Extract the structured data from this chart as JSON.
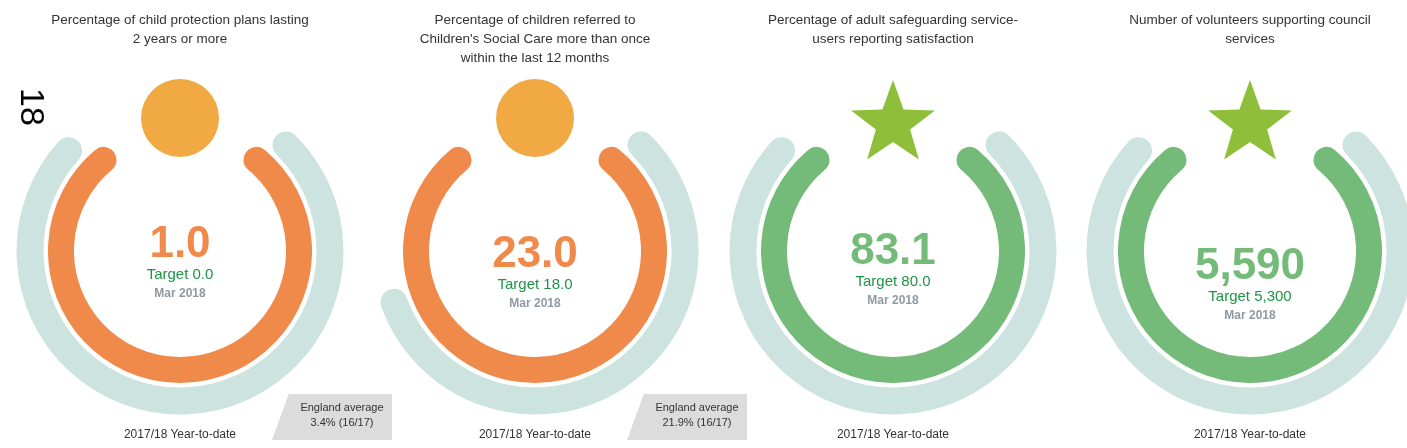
{
  "chart_data": [
    {
      "type": "other",
      "title": "Percentage of child protection plans lasting 2 years or more",
      "categories": [
        null
      ],
      "values": [
        1.0
      ],
      "value_labels": [
        "1.0"
      ],
      "annotations": [
        "Target  0.0",
        "Mar 2018",
        "2017/18 Year-to-date",
        "England average 3.4% (16/17)",
        "18"
      ]
    },
    {
      "type": "other",
      "title": "Percentage of children referred to Children's Social Care more than once within the last 12 months",
      "categories": [
        null
      ],
      "values": [
        23.0
      ],
      "value_labels": [
        "23.0"
      ],
      "annotations": [
        "Target  18.0",
        "Mar 2018",
        "2017/18 Year-to-date",
        "England average 21.9% (16/17)"
      ]
    },
    {
      "type": "other",
      "title": "Percentage of adult safeguarding service-users reporting satisfaction",
      "categories": [
        null
      ],
      "values": [
        83.1
      ],
      "value_labels": [
        "83.1"
      ],
      "annotations": [
        "Target  80.0",
        "Mar 2018",
        "2017/18 Year-to-date"
      ]
    },
    {
      "type": "other",
      "title": "Number of volunteers supporting council services",
      "categories": [
        null
      ],
      "values": [
        5590
      ],
      "value_labels": [
        "5,590"
      ],
      "annotations": [
        "Target  5,300",
        "Mar 2018",
        "2017/18 Year-to-date"
      ]
    }
  ]
}
